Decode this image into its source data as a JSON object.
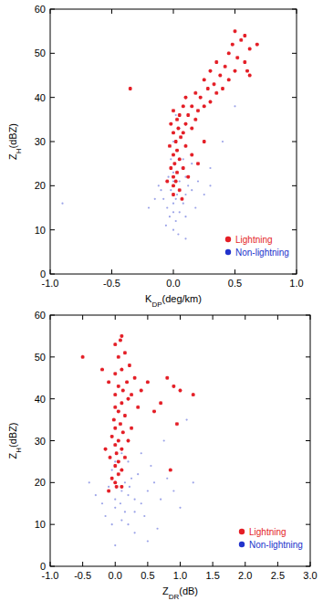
{
  "chart_data": [
    {
      "type": "scatter",
      "x_label": [
        "K",
        "DP",
        "(deg/km)"
      ],
      "y_label": [
        "Z",
        "H",
        "(dBZ)"
      ],
      "xlim": [
        -1,
        1
      ],
      "ylim": [
        0,
        60
      ],
      "xticks": [
        {
          "value": -1,
          "label": "-1.0"
        },
        {
          "value": -0.5,
          "label": "-0.5"
        },
        {
          "value": 0,
          "label": "0.0"
        },
        {
          "value": 0.5,
          "label": "0.5"
        },
        {
          "value": 1,
          "label": "1.0"
        }
      ],
      "yticks": [
        0,
        10,
        20,
        30,
        40,
        50,
        60
      ],
      "legend": "lower right",
      "series": [
        {
          "name": "Non-lightning",
          "color": "#2233cc",
          "marker": "dot",
          "x": [
            0.0,
            0.02,
            -0.03,
            0.05,
            -0.05,
            0.0,
            0.08,
            -0.08,
            0.03,
            0.1,
            -0.1,
            0.0,
            0.05,
            -0.04,
            0.12,
            0.15,
            -0.12,
            0.0,
            0.07,
            -0.02,
            0.1,
            0.2,
            0.25,
            -0.15,
            0.03,
            0.0,
            0.05,
            0.02,
            0.3,
            -0.2,
            0.18,
            0.0,
            -0.06,
            0.04,
            0.1,
            0.08,
            -0.9,
            0.15,
            0.06,
            0.3,
            0.4,
            0.5,
            0.1,
            -0.02,
            0.0,
            0.02
          ],
          "values": [
            10,
            12,
            13,
            14,
            15,
            16,
            16,
            17,
            18,
            18,
            19,
            20,
            21,
            22,
            20,
            19,
            20,
            23,
            24,
            26,
            22,
            21,
            18,
            17,
            28,
            30,
            33,
            36,
            20,
            15,
            15,
            14,
            11,
            9,
            13,
            26,
            16,
            25,
            31,
            24,
            30,
            38,
            8,
            19,
            21,
            17
          ]
        },
        {
          "name": "Lightning",
          "color": "#e41e26",
          "marker": "star",
          "x": [
            0.0,
            0.02,
            0.05,
            0.0,
            0.03,
            -0.02,
            0.01,
            0.05,
            0.08,
            0.0,
            0.03,
            -0.03,
            0.02,
            0.06,
            0.1,
            0.0,
            0.04,
            0.08,
            -0.02,
            0.03,
            0.1,
            0.15,
            0.05,
            0.12,
            0.0,
            0.08,
            0.18,
            0.2,
            0.15,
            0.25,
            0.1,
            0.22,
            0.3,
            0.18,
            0.28,
            0.35,
            0.25,
            0.33,
            0.4,
            0.3,
            0.38,
            0.45,
            0.35,
            0.42,
            0.5,
            0.45,
            0.52,
            0.58,
            0.48,
            0.55,
            0.62,
            0.5,
            0.58,
            0.68,
            0.6,
            0.62,
            -0.35,
            0.12,
            0.2,
            0.25,
            0.15,
            -0.05,
            0.0,
            0.07
          ],
          "values": [
            20,
            21,
            19,
            22,
            23,
            24,
            25,
            26,
            24,
            27,
            28,
            29,
            30,
            31,
            29,
            32,
            33,
            32,
            34,
            35,
            34,
            33,
            36,
            36,
            37,
            38,
            35,
            37,
            38,
            38,
            40,
            40,
            39,
            41,
            42,
            41,
            44,
            43,
            42,
            46,
            45,
            44,
            48,
            47,
            46,
            50,
            49,
            48,
            52,
            53,
            51,
            55,
            54,
            52,
            46,
            45,
            42,
            22,
            25,
            30,
            27,
            21,
            18,
            17
          ]
        }
      ]
    },
    {
      "type": "scatter",
      "x_label": [
        "Z",
        "DR",
        "(dB)"
      ],
      "y_label": [
        "Z",
        "H",
        "(dBZ)"
      ],
      "xlim": [
        -1,
        3
      ],
      "ylim": [
        0,
        60
      ],
      "xticks": [
        {
          "value": -1,
          "label": "-1.0"
        },
        {
          "value": -0.5,
          "label": "-0.5"
        },
        {
          "value": 0,
          "label": "0.0"
        },
        {
          "value": 0.5,
          "label": "0.5"
        },
        {
          "value": 1,
          "label": "1.0"
        },
        {
          "value": 1.5,
          "label": "1.5"
        },
        {
          "value": 2,
          "label": "2.0"
        },
        {
          "value": 2.5,
          "label": "2.5"
        },
        {
          "value": 3,
          "label": "3.0"
        }
      ],
      "yticks": [
        0,
        10,
        20,
        30,
        40,
        50,
        60
      ],
      "legend": "lower right",
      "series": [
        {
          "name": "Non-lightning",
          "color": "#2233cc",
          "marker": "dot",
          "x": [
            0.0,
            0.1,
            -0.1,
            0.2,
            0.3,
            -0.2,
            0.0,
            0.15,
            0.4,
            0.5,
            0.6,
            0.25,
            0.05,
            -0.05,
            0.35,
            -0.3,
            0.1,
            0.2,
            -0.15,
            0.45,
            0.7,
            0.8,
            0.55,
            0.0,
            0.1,
            0.2,
            0.9,
            1.0,
            0.65,
            0.3,
            -0.4,
            0.0,
            0.08,
            0.15,
            0.22,
            1.2,
            0.4,
            0.05,
            0.0,
            0.75,
            1.1,
            0.3,
            -0.05,
            0.5
          ],
          "values": [
            20,
            18,
            19,
            17,
            16,
            15,
            14,
            13,
            15,
            18,
            20,
            21,
            22,
            23,
            22,
            17,
            11,
            10,
            12,
            12,
            16,
            21,
            24,
            25,
            27,
            25,
            18,
            14,
            9,
            8,
            20,
            16,
            15,
            20,
            19,
            20,
            27,
            30,
            5,
            30,
            35,
            13,
            10,
            6
          ]
        },
        {
          "name": "Lightning",
          "color": "#e41e26",
          "marker": "star",
          "x": [
            0.0,
            0.05,
            -0.05,
            0.1,
            0.0,
            0.05,
            -0.08,
            0.02,
            0.1,
            0.0,
            0.05,
            -0.05,
            0.12,
            0.0,
            0.08,
            -0.02,
            0.15,
            0.05,
            0.0,
            0.1,
            0.2,
            0.0,
            0.12,
            0.25,
            0.05,
            0.18,
            0.3,
            0.0,
            0.1,
            0.22,
            0.05,
            0.15,
            0.0,
            0.08,
            0.1,
            -0.5,
            -0.2,
            -0.1,
            0.4,
            0.5,
            0.7,
            0.8,
            0.9,
            1.0,
            1.2,
            0.6,
            0.35,
            0.95,
            0.85,
            0.02,
            -0.1,
            0.1,
            0.15,
            0.2,
            0.25,
            -0.15
          ],
          "values": [
            20,
            22,
            21,
            23,
            24,
            25,
            26,
            27,
            28,
            29,
            30,
            31,
            32,
            33,
            34,
            35,
            36,
            37,
            38,
            39,
            40,
            41,
            42,
            41,
            43,
            44,
            45,
            46,
            47,
            48,
            50,
            51,
            53,
            54,
            55,
            50,
            47,
            44,
            42,
            44,
            39,
            45,
            43,
            42,
            41,
            37,
            38,
            34,
            23,
            19,
            18,
            19,
            26,
            30,
            33,
            28
          ]
        }
      ]
    }
  ]
}
